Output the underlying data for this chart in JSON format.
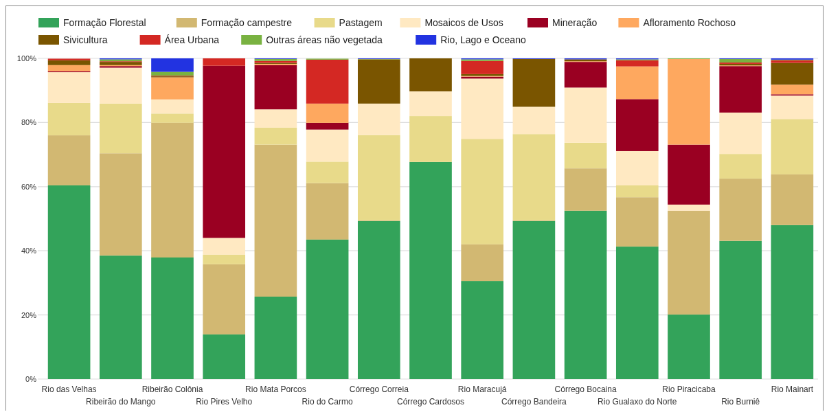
{
  "chart_data": {
    "type": "bar",
    "stacked": true,
    "legend": "top",
    "grid": "y",
    "categories": [
      "Rio das Velhas",
      "Ribeirão do Mango",
      "Ribeirão Colônia",
      "Rio Pires Velho",
      "Rio Mata Porcos",
      "Rio do Carmo",
      "Córrego Correia",
      "Córrego Cardosos",
      "Rio Maracujá",
      "Córrego Bandeira",
      "Córrego Bocaina",
      "Rio Gualaxo do Norte",
      "Rio Piracicaba",
      "Rio Burniê",
      "Rio Mainart"
    ],
    "ylim": [
      0,
      100
    ],
    "yticks": [
      {
        "value": 0,
        "label": "0%"
      },
      {
        "value": 20,
        "label": "20%"
      },
      {
        "value": 40,
        "label": "40%"
      },
      {
        "value": 60,
        "label": "60%"
      },
      {
        "value": 80,
        "label": "80%"
      },
      {
        "value": 100,
        "label": "100%"
      }
    ],
    "series": [
      {
        "name": "Formação Florestal",
        "color": "#33a35a",
        "values": [
          60.4,
          38.5,
          37.9,
          13.9,
          25.7,
          43.5,
          49.3,
          67.7,
          30.6,
          49.3,
          52.5,
          41.3,
          20.1,
          43.1,
          48.0
        ]
      },
      {
        "name": "Formação campestre",
        "color": "#d2b872",
        "values": [
          15.6,
          31.9,
          42.0,
          21.9,
          47.4,
          17.6,
          0.2,
          0,
          11.4,
          0.2,
          13.2,
          15.4,
          32.4,
          19.4,
          15.8
        ]
      },
      {
        "name": "Pastagem",
        "color": "#e8da8a",
        "values": [
          10.1,
          15.5,
          2.9,
          3.0,
          5.3,
          6.7,
          26.6,
          14.3,
          32.9,
          26.9,
          8.0,
          3.7,
          0,
          7.7,
          17.3
        ]
      },
      {
        "name": "Mosaicos de Usos",
        "color": "#ffe9c2",
        "values": [
          9.6,
          11.2,
          4.4,
          5.2,
          5.7,
          10.0,
          9.8,
          7.7,
          18.8,
          8.5,
          17.2,
          10.7,
          1.9,
          12.9,
          7.3
        ]
      },
      {
        "name": "Mineração",
        "color": "#9a0022",
        "values": [
          0.3,
          0.5,
          0,
          53.7,
          13.8,
          2.1,
          0,
          0,
          0.6,
          0,
          8.0,
          16.2,
          18.7,
          14.5,
          0.4
        ]
      },
      {
        "name": "Afloramento Rochoso",
        "color": "#fea85f",
        "values": [
          1.9,
          0.3,
          6.9,
          0,
          0.4,
          6.0,
          0,
          0,
          0.2,
          0,
          0.2,
          10.2,
          26.7,
          0.2,
          3.0
        ]
      },
      {
        "name": "Sivicultura",
        "color": "#7a5500",
        "values": [
          1.5,
          1.0,
          0.3,
          0,
          0.3,
          0,
          13.8,
          10.3,
          0.6,
          14.9,
          0.6,
          0,
          0,
          0.5,
          6.8
        ]
      },
      {
        "name": "Área Urbana",
        "color": "#d42823",
        "values": [
          0.5,
          0.2,
          0.2,
          2.3,
          0.6,
          13.7,
          0,
          0,
          4.1,
          0,
          0,
          1.9,
          0,
          0.4,
          0.8
        ]
      },
      {
        "name": "Outras áreas não vegetada",
        "color": "#79b241",
        "values": [
          0,
          0.6,
          1.2,
          0,
          0.6,
          0.3,
          0.1,
          0,
          0.5,
          0,
          0,
          0.3,
          0.2,
          1.1,
          0.2
        ]
      },
      {
        "name": "Rio, Lago e Oceano",
        "color": "#2233e1",
        "values": [
          null,
          0.3,
          4.2,
          0,
          0.2,
          null,
          0.2,
          0,
          0.3,
          0.2,
          0.3,
          0.3,
          0,
          0.2,
          0.4
        ]
      }
    ]
  }
}
